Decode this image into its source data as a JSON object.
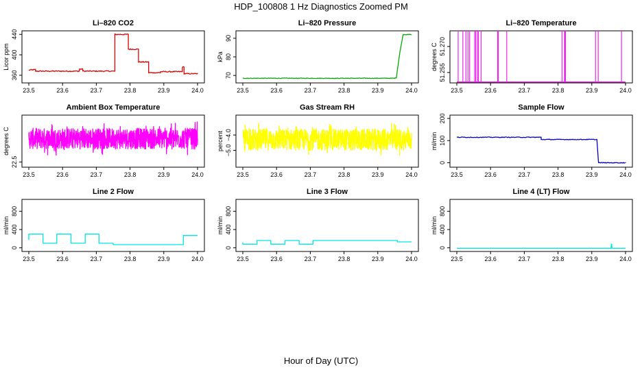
{
  "figure": {
    "title": "HDP_100808  1 Hz Diagnostics Zoomed PM",
    "xlabel": "Hour of Day (UTC)"
  },
  "chart_data": [
    {
      "type": "line",
      "title": "Li–820 CO2",
      "ylabel": "Licor ppm",
      "color": "#dd0000",
      "xlim": [
        23.5,
        24.0
      ],
      "ylim": [
        345,
        447
      ],
      "xticks": [
        "23.5",
        "23.6",
        "23.7",
        "23.8",
        "23.9",
        "24.0"
      ],
      "yticks": [
        360,
        400,
        440
      ],
      "series": [
        {
          "x": [
            23.5,
            23.52,
            23.52,
            23.65,
            23.65,
            23.66,
            23.66,
            23.755,
            23.755,
            23.795,
            23.795,
            23.825,
            23.825,
            23.855,
            23.855,
            23.89,
            23.89,
            23.955,
            23.955,
            23.96,
            23.96,
            24.0
          ],
          "y": [
            370,
            371,
            368,
            368,
            372,
            372,
            368,
            368,
            440,
            440,
            411,
            411,
            386,
            386,
            365,
            365,
            367,
            367,
            376,
            376,
            363,
            363
          ],
          "noise": 1.0
        }
      ]
    },
    {
      "type": "line",
      "title": "Li–820 Pressure",
      "ylabel": "kPa",
      "color": "#00aa00",
      "xlim": [
        23.5,
        24.0
      ],
      "ylim": [
        66,
        94
      ],
      "xticks": [
        "23.5",
        "23.6",
        "23.7",
        "23.8",
        "23.9",
        "24.0"
      ],
      "yticks": [
        70,
        80,
        90
      ],
      "series": [
        {
          "x": [
            23.5,
            23.95,
            23.955,
            23.965,
            23.975,
            24.0
          ],
          "y": [
            68.5,
            68.5,
            68.8,
            82,
            92,
            92
          ],
          "noise": 0.15
        }
      ]
    },
    {
      "type": "line",
      "title": "Li–820 Temperature",
      "ylabel": "degrees C",
      "color": "#ee22ee",
      "xlim": [
        23.5,
        24.0
      ],
      "ylim": [
        51.249,
        51.279
      ],
      "xticks": [
        "23.5",
        "23.6",
        "23.7",
        "23.8",
        "23.9",
        "24.0"
      ],
      "yticks": [
        "51.255",
        "51.270"
      ],
      "baseline": 51.2495,
      "spike_top": 51.279,
      "spikes": [
        23.504,
        23.518,
        23.527,
        23.533,
        23.538,
        23.553,
        23.556,
        23.561,
        23.564,
        23.572,
        23.621,
        23.623,
        23.648,
        23.812,
        23.819,
        23.821,
        23.822,
        23.911,
        23.919,
        23.988
      ]
    },
    {
      "type": "line",
      "title": "Ambient Box Temperature",
      "ylabel": "degrees C",
      "color": "#ff00ff",
      "xlim": [
        23.5,
        24.0
      ],
      "ylim": [
        22.3,
        24.3
      ],
      "xticks": [
        "23.5",
        "23.6",
        "23.7",
        "23.8",
        "23.9",
        "24.0"
      ],
      "yticks": [
        "22.5"
      ],
      "series": [
        {
          "x": [
            23.5,
            24.0
          ],
          "y": [
            23.4,
            23.4
          ],
          "noise": 0.4
        }
      ]
    },
    {
      "type": "line",
      "title": "Gas Stream RH",
      "ylabel": "percent",
      "color": "#ffff00",
      "xlim": [
        23.5,
        24.0
      ],
      "ylim": [
        -6.1,
        -2.7
      ],
      "xticks": [
        "23.5",
        "23.6",
        "23.7",
        "23.8",
        "23.9",
        "24.0"
      ],
      "yticks": [
        "−5.0",
        "−4.0"
      ],
      "series": [
        {
          "x": [
            23.5,
            24.0
          ],
          "y": [
            -4.3,
            -4.3
          ],
          "noise": 0.7
        }
      ]
    },
    {
      "type": "line",
      "title": "Sample Flow",
      "ylabel": "ml/min",
      "color": "#0000cc",
      "xlim": [
        23.5,
        24.0
      ],
      "ylim": [
        -20,
        215
      ],
      "xticks": [
        "23.5",
        "23.6",
        "23.7",
        "23.8",
        "23.9",
        "24.0"
      ],
      "yticks": [
        0,
        100,
        200
      ],
      "series": [
        {
          "x": [
            23.5,
            23.75,
            23.75,
            23.915,
            23.92,
            24.0
          ],
          "y": [
            115,
            115,
            105,
            105,
            0,
            0
          ],
          "noise": 1.5
        }
      ]
    },
    {
      "type": "line",
      "title": "Line 2 Flow",
      "ylabel": "ml/min",
      "color": "#00e5e5",
      "xlim": [
        23.5,
        24.0
      ],
      "ylim": [
        -80,
        1060
      ],
      "xticks": [
        "23.5",
        "23.6",
        "23.7",
        "23.8",
        "23.9",
        "24.0"
      ],
      "yticks": [
        0,
        400,
        800
      ],
      "series": [
        {
          "x": [
            23.5,
            23.5,
            23.542,
            23.542,
            23.583,
            23.583,
            23.625,
            23.625,
            23.667,
            23.667,
            23.708,
            23.708,
            23.75,
            23.75,
            23.958,
            23.958,
            24.0
          ],
          "y": [
            170,
            300,
            300,
            100,
            100,
            300,
            300,
            100,
            100,
            300,
            300,
            100,
            100,
            70,
            70,
            270,
            270
          ]
        }
      ]
    },
    {
      "type": "line",
      "title": "Line 3 Flow",
      "ylabel": "ml/min",
      "color": "#00e5e5",
      "xlim": [
        23.5,
        24.0
      ],
      "ylim": [
        -80,
        1060
      ],
      "xticks": [
        "23.5",
        "23.6",
        "23.7",
        "23.8",
        "23.9",
        "24.0"
      ],
      "yticks": [
        0,
        400,
        800
      ],
      "series": [
        {
          "x": [
            23.5,
            23.5,
            23.542,
            23.542,
            23.583,
            23.583,
            23.625,
            23.625,
            23.667,
            23.667,
            23.708,
            23.708,
            23.958,
            23.958,
            24.0
          ],
          "y": [
            120,
            80,
            80,
            160,
            160,
            80,
            80,
            160,
            160,
            80,
            80,
            160,
            160,
            130,
            130
          ]
        }
      ]
    },
    {
      "type": "line",
      "title": "Line 4 (LT) Flow",
      "ylabel": "ml/min",
      "color": "#00e5e5",
      "xlim": [
        23.5,
        24.0
      ],
      "ylim": [
        -80,
        1060
      ],
      "xticks": [
        "23.5",
        "23.6",
        "23.7",
        "23.8",
        "23.9",
        "24.0"
      ],
      "yticks": [
        0,
        400,
        800
      ],
      "series": [
        {
          "x": [
            23.5,
            23.957,
            23.958,
            23.959,
            23.96,
            24.0
          ],
          "y": [
            -10,
            -10,
            80,
            80,
            -10,
            -10
          ]
        }
      ]
    }
  ]
}
